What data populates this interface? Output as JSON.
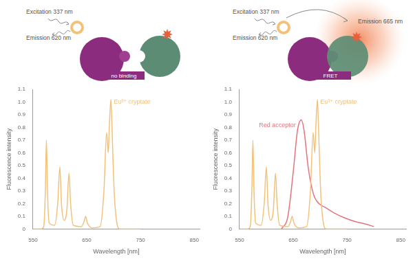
{
  "chart_data": [
    {
      "type": "line",
      "xlabel": "Wavelength [nm]",
      "ylabel": "Fluorescence intensity",
      "xlim": [
        550,
        860
      ],
      "xticks": [
        550,
        650,
        750,
        850
      ],
      "ylim": [
        0,
        1.1
      ],
      "yticks": [
        0,
        0.1,
        0.2,
        0.3,
        0.4,
        0.5,
        0.6,
        0.7,
        0.8,
        0.9,
        {
          "value": 1,
          "label": "1.0"
        },
        1.1
      ],
      "grid": false,
      "series": [
        {
          "name": "Eu³⁺ cryptate",
          "color": "#f2c27a",
          "x": [
            550,
            565,
            570,
            573,
            575,
            577,
            580,
            590,
            596,
            600,
            603,
            608,
            613,
            617,
            620,
            625,
            640,
            645,
            648,
            651,
            660,
            675,
            682,
            687,
            690,
            692,
            695,
            697,
            701,
            706,
            712,
            750
          ],
          "values": [
            0,
            0,
            0.02,
            0.3,
            0.7,
            0.3,
            0.05,
            0.03,
            0.2,
            0.49,
            0.2,
            0.07,
            0.15,
            0.44,
            0.2,
            0.03,
            0.02,
            0.06,
            0.1,
            0.05,
            0.01,
            0.02,
            0.3,
            0.76,
            0.6,
            0.8,
            1.02,
            0.8,
            0.3,
            0.05,
            0,
            0
          ]
        }
      ]
    },
    {
      "type": "line",
      "xlabel": "Wavelength [nm]",
      "ylabel": "Fluorescence intensity",
      "xlim": [
        550,
        860
      ],
      "xticks": [
        550,
        650,
        750,
        850
      ],
      "ylim": [
        0,
        1.1
      ],
      "yticks": [
        0,
        0.1,
        0.2,
        0.3,
        0.4,
        0.5,
        0.6,
        0.7,
        0.8,
        0.9,
        {
          "value": 1,
          "label": "1.0"
        },
        1.1
      ],
      "grid": false,
      "series": [
        {
          "name": "Eu³⁺ cryptate",
          "color": "#f2c27a",
          "x": [
            550,
            565,
            570,
            573,
            575,
            577,
            580,
            590,
            596,
            600,
            603,
            608,
            613,
            617,
            620,
            625,
            640,
            645,
            648,
            651,
            660,
            675,
            682,
            687,
            690,
            692,
            695,
            697,
            701,
            706,
            712,
            750
          ],
          "values": [
            0,
            0,
            0.02,
            0.3,
            0.7,
            0.3,
            0.05,
            0.03,
            0.2,
            0.49,
            0.2,
            0.07,
            0.15,
            0.44,
            0.2,
            0.03,
            0.02,
            0.06,
            0.1,
            0.05,
            0.01,
            0.02,
            0.3,
            0.76,
            0.6,
            0.8,
            1.02,
            0.8,
            0.3,
            0.05,
            0,
            0
          ]
        },
        {
          "name": "Red acceptor",
          "color": "#e3737c",
          "x": [
            628,
            640,
            650,
            658,
            665,
            670,
            678,
            688,
            698,
            710,
            725,
            745,
            765,
            785,
            800
          ],
          "values": [
            0,
            0.1,
            0.45,
            0.78,
            0.86,
            0.78,
            0.48,
            0.27,
            0.2,
            0.17,
            0.13,
            0.09,
            0.06,
            0.04,
            0.02
          ]
        }
      ]
    }
  ],
  "diagrams": [
    {
      "excitation": "Excitation 337 nm",
      "emission": "Emission 620 nm",
      "label": "no binding"
    },
    {
      "excitation": "Excitation 337 nm",
      "emission": "Emission 620 nm",
      "fret_emission": "Emission 665 nm",
      "label": "FRET"
    }
  ]
}
